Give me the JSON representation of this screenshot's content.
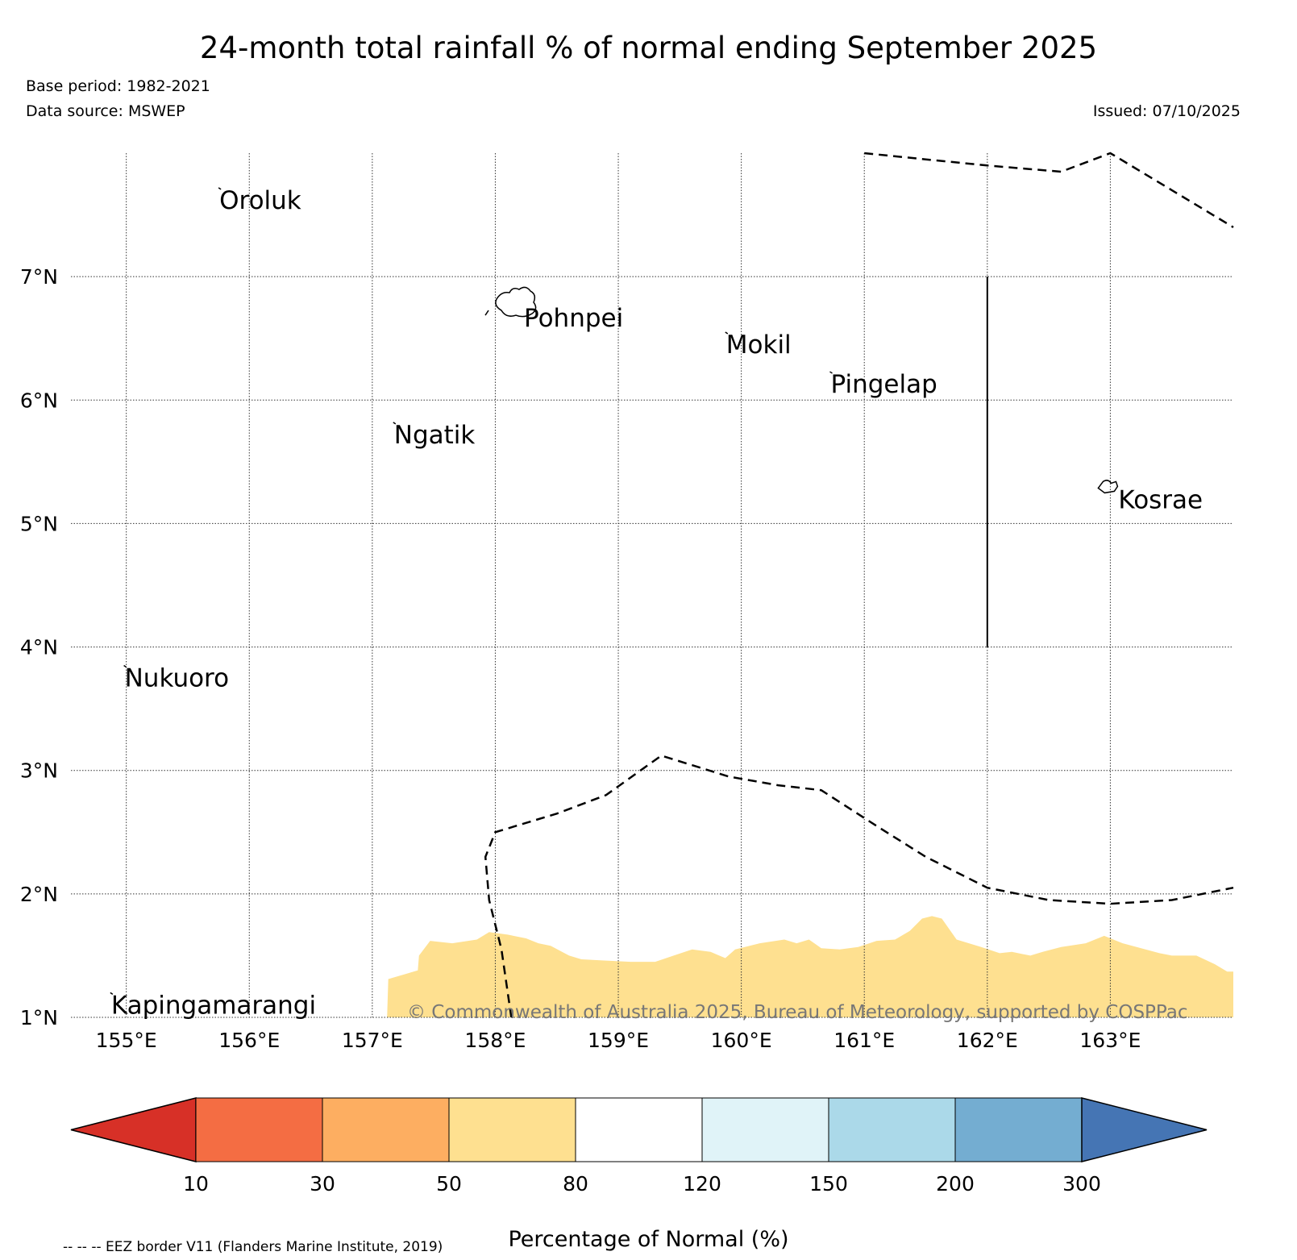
{
  "header": {
    "title": "24-month total rainfall % of normal ending September 2025",
    "base_period": "Base period: 1982-2021",
    "data_source": "Data source: MSWEP",
    "issued": "Issued: 07/10/2025"
  },
  "map": {
    "lon_range": [
      154.55,
      164.0
    ],
    "lat_range": [
      1.0,
      8.0
    ],
    "lon_ticks": [
      {
        "value": 155,
        "label": "155°E"
      },
      {
        "value": 156,
        "label": "156°E"
      },
      {
        "value": 157,
        "label": "157°E"
      },
      {
        "value": 158,
        "label": "158°E"
      },
      {
        "value": 159,
        "label": "159°E"
      },
      {
        "value": 160,
        "label": "160°E"
      },
      {
        "value": 161,
        "label": "161°E"
      },
      {
        "value": 162,
        "label": "162°E"
      },
      {
        "value": 163,
        "label": "163°E"
      }
    ],
    "lat_ticks": [
      {
        "value": 1,
        "label": "1°N"
      },
      {
        "value": 2,
        "label": "2°N"
      },
      {
        "value": 3,
        "label": "3°N"
      },
      {
        "value": 4,
        "label": "4°N"
      },
      {
        "value": 5,
        "label": "5°N"
      },
      {
        "value": 6,
        "label": "6°N"
      },
      {
        "value": 7,
        "label": "7°N"
      }
    ],
    "islands": [
      {
        "name": "Oroluk",
        "lon": 155.75,
        "lat": 7.72
      },
      {
        "name": "Pohnpei",
        "lon": 158.22,
        "lat": 6.87
      },
      {
        "name": "Mokil",
        "lon": 159.87,
        "lat": 6.55
      },
      {
        "name": "Pingelap",
        "lon": 160.72,
        "lat": 6.23
      },
      {
        "name": "Ngatik",
        "lon": 157.17,
        "lat": 5.82
      },
      {
        "name": "Kosrae",
        "lon": 163.0,
        "lat": 5.32
      },
      {
        "name": "Nukuoro",
        "lon": 154.98,
        "lat": 3.85
      },
      {
        "name": "Kapingamarangi",
        "lon": 154.87,
        "lat": 1.2
      }
    ],
    "anomaly_region": {
      "category": "50-80",
      "color": "#fee090",
      "edge_points": [
        [
          157.12,
          1.0
        ],
        [
          157.13,
          1.31
        ],
        [
          157.37,
          1.38
        ],
        [
          157.38,
          1.5
        ],
        [
          157.47,
          1.62
        ],
        [
          157.65,
          1.6
        ],
        [
          157.85,
          1.63
        ],
        [
          157.95,
          1.69
        ],
        [
          158.1,
          1.67
        ],
        [
          158.25,
          1.64
        ],
        [
          158.35,
          1.6
        ],
        [
          158.45,
          1.58
        ],
        [
          158.6,
          1.5
        ],
        [
          158.7,
          1.47
        ],
        [
          158.9,
          1.46
        ],
        [
          159.1,
          1.45
        ],
        [
          159.3,
          1.45
        ],
        [
          159.45,
          1.5
        ],
        [
          159.6,
          1.55
        ],
        [
          159.75,
          1.53
        ],
        [
          159.87,
          1.48
        ],
        [
          159.95,
          1.55
        ],
        [
          160.15,
          1.6
        ],
        [
          160.35,
          1.63
        ],
        [
          160.45,
          1.6
        ],
        [
          160.55,
          1.63
        ],
        [
          160.65,
          1.56
        ],
        [
          160.8,
          1.55
        ],
        [
          160.95,
          1.57
        ],
        [
          161.1,
          1.62
        ],
        [
          161.25,
          1.63
        ],
        [
          161.37,
          1.7
        ],
        [
          161.47,
          1.8
        ],
        [
          161.55,
          1.82
        ],
        [
          161.63,
          1.8
        ],
        [
          161.75,
          1.63
        ],
        [
          161.95,
          1.57
        ],
        [
          162.1,
          1.52
        ],
        [
          162.2,
          1.53
        ],
        [
          162.35,
          1.5
        ],
        [
          162.45,
          1.53
        ],
        [
          162.6,
          1.57
        ],
        [
          162.8,
          1.6
        ],
        [
          162.95,
          1.66
        ],
        [
          163.1,
          1.6
        ],
        [
          163.25,
          1.56
        ],
        [
          163.4,
          1.52
        ],
        [
          163.5,
          1.5
        ],
        [
          163.7,
          1.5
        ],
        [
          163.85,
          1.43
        ],
        [
          163.95,
          1.37
        ],
        [
          164.0,
          1.37
        ],
        [
          164.0,
          1.0
        ]
      ]
    },
    "eez_borders": [
      [
        [
          161.0,
          8.0
        ],
        [
          161.5,
          7.95
        ],
        [
          162.0,
          7.9
        ],
        [
          162.6,
          7.85
        ],
        [
          163.0,
          8.0
        ],
        [
          163.5,
          7.7
        ],
        [
          164.0,
          7.4
        ]
      ],
      [
        [
          158.13,
          1.0
        ],
        [
          158.05,
          1.55
        ],
        [
          157.95,
          1.95
        ],
        [
          157.92,
          2.3
        ],
        [
          158.0,
          2.5
        ],
        [
          158.5,
          2.65
        ],
        [
          158.9,
          2.8
        ],
        [
          159.35,
          3.12
        ],
        [
          159.9,
          2.95
        ],
        [
          160.3,
          2.88
        ],
        [
          160.65,
          2.84
        ],
        [
          161.1,
          2.55
        ],
        [
          161.5,
          2.3
        ],
        [
          162.0,
          2.05
        ],
        [
          162.5,
          1.95
        ],
        [
          163.0,
          1.92
        ],
        [
          163.5,
          1.95
        ],
        [
          164.0,
          2.05
        ]
      ]
    ],
    "solid_border": [
      [
        162.0,
        4.0
      ],
      [
        162.0,
        7.0
      ]
    ],
    "copyright": "© Commonwealth of Australia 2025, Bureau of Meteorology, supported by COSPPac"
  },
  "colorbar": {
    "bins": [
      {
        "range": "<10",
        "color": "#d73027"
      },
      {
        "range": "10-30",
        "color": "#f46d43"
      },
      {
        "range": "30-50",
        "color": "#fdae61"
      },
      {
        "range": "50-80",
        "color": "#fee090"
      },
      {
        "range": "80-120",
        "color": "#ffffff"
      },
      {
        "range": "120-150",
        "color": "#e0f3f8"
      },
      {
        "range": "150-200",
        "color": "#abd9e9"
      },
      {
        "range": "200-300",
        "color": "#74add1"
      },
      {
        "range": ">300",
        "color": "#4575b4"
      }
    ],
    "tick_labels": [
      "10",
      "30",
      "50",
      "80",
      "120",
      "150",
      "200",
      "300"
    ],
    "label": "Percentage of Normal (%)"
  },
  "footer": {
    "eez_note": "-- -- -- EEZ border V11 (Flanders Marine Institute, 2019)"
  }
}
